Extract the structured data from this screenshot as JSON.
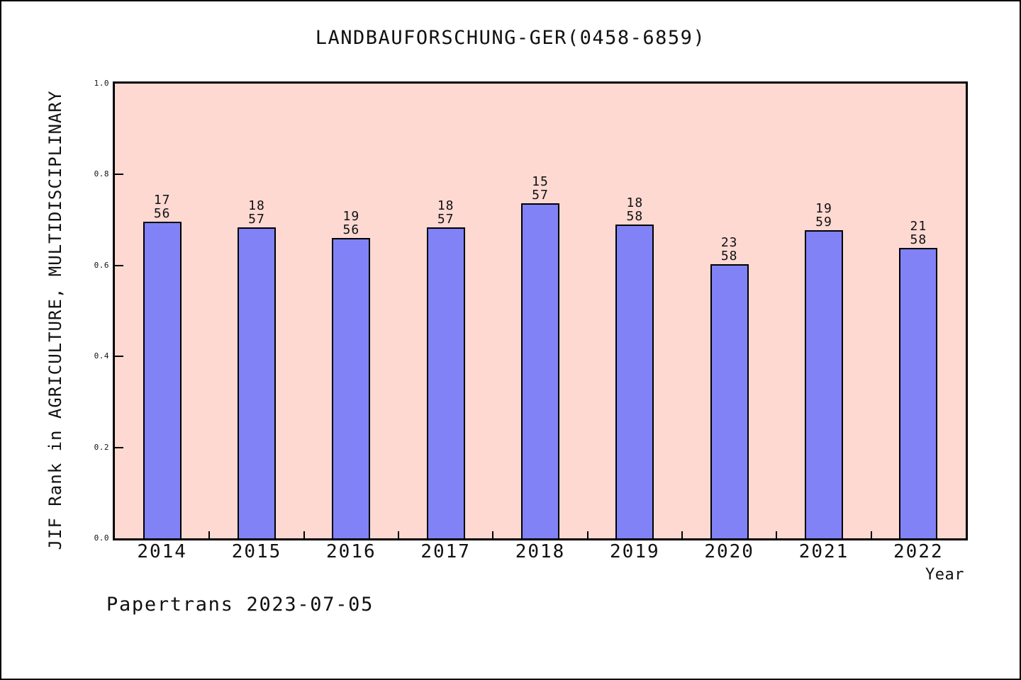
{
  "header": {
    "title": "LANDBAUFORSCHUNG-GER(0458-6859)"
  },
  "footer": {
    "text": "Papertrans 2023-07-05"
  },
  "colors": {
    "plot_background": "#fdd9d2",
    "bar_fill": "#8182f6",
    "bar_edge": "#000000",
    "axis_frame": "#000000",
    "text": "#111111"
  },
  "chart_data": {
    "type": "bar",
    "title": "LANDBAUFORSCHUNG-GER(0458-6859)",
    "xlabel": "Year",
    "ylabel": "JIF Rank in AGRICULTURE, MULTIDISCIPLINARY",
    "ylim": [
      0.0,
      1.0
    ],
    "grid": false,
    "legend": "none",
    "ytick_labels": [
      "0.0",
      "0.2",
      "0.4",
      "0.6",
      "0.8",
      "1.0"
    ],
    "ytick_values": [
      0.0,
      0.2,
      0.4,
      0.6,
      0.8,
      1.0
    ],
    "categories": [
      "2014",
      "2015",
      "2016",
      "2017",
      "2018",
      "2019",
      "2020",
      "2021",
      "2022"
    ],
    "bars": [
      {
        "year": "2014",
        "rank": "17",
        "total": "56",
        "value": 0.6964
      },
      {
        "year": "2015",
        "rank": "18",
        "total": "57",
        "value": 0.6842
      },
      {
        "year": "2016",
        "rank": "19",
        "total": "56",
        "value": 0.6607
      },
      {
        "year": "2017",
        "rank": "18",
        "total": "57",
        "value": 0.6842
      },
      {
        "year": "2018",
        "rank": "15",
        "total": "57",
        "value": 0.7368
      },
      {
        "year": "2019",
        "rank": "18",
        "total": "58",
        "value": 0.6897
      },
      {
        "year": "2020",
        "rank": "23",
        "total": "58",
        "value": 0.6034
      },
      {
        "year": "2021",
        "rank": "19",
        "total": "59",
        "value": 0.678
      },
      {
        "year": "2022",
        "rank": "21",
        "total": "58",
        "value": 0.6379
      }
    ]
  }
}
